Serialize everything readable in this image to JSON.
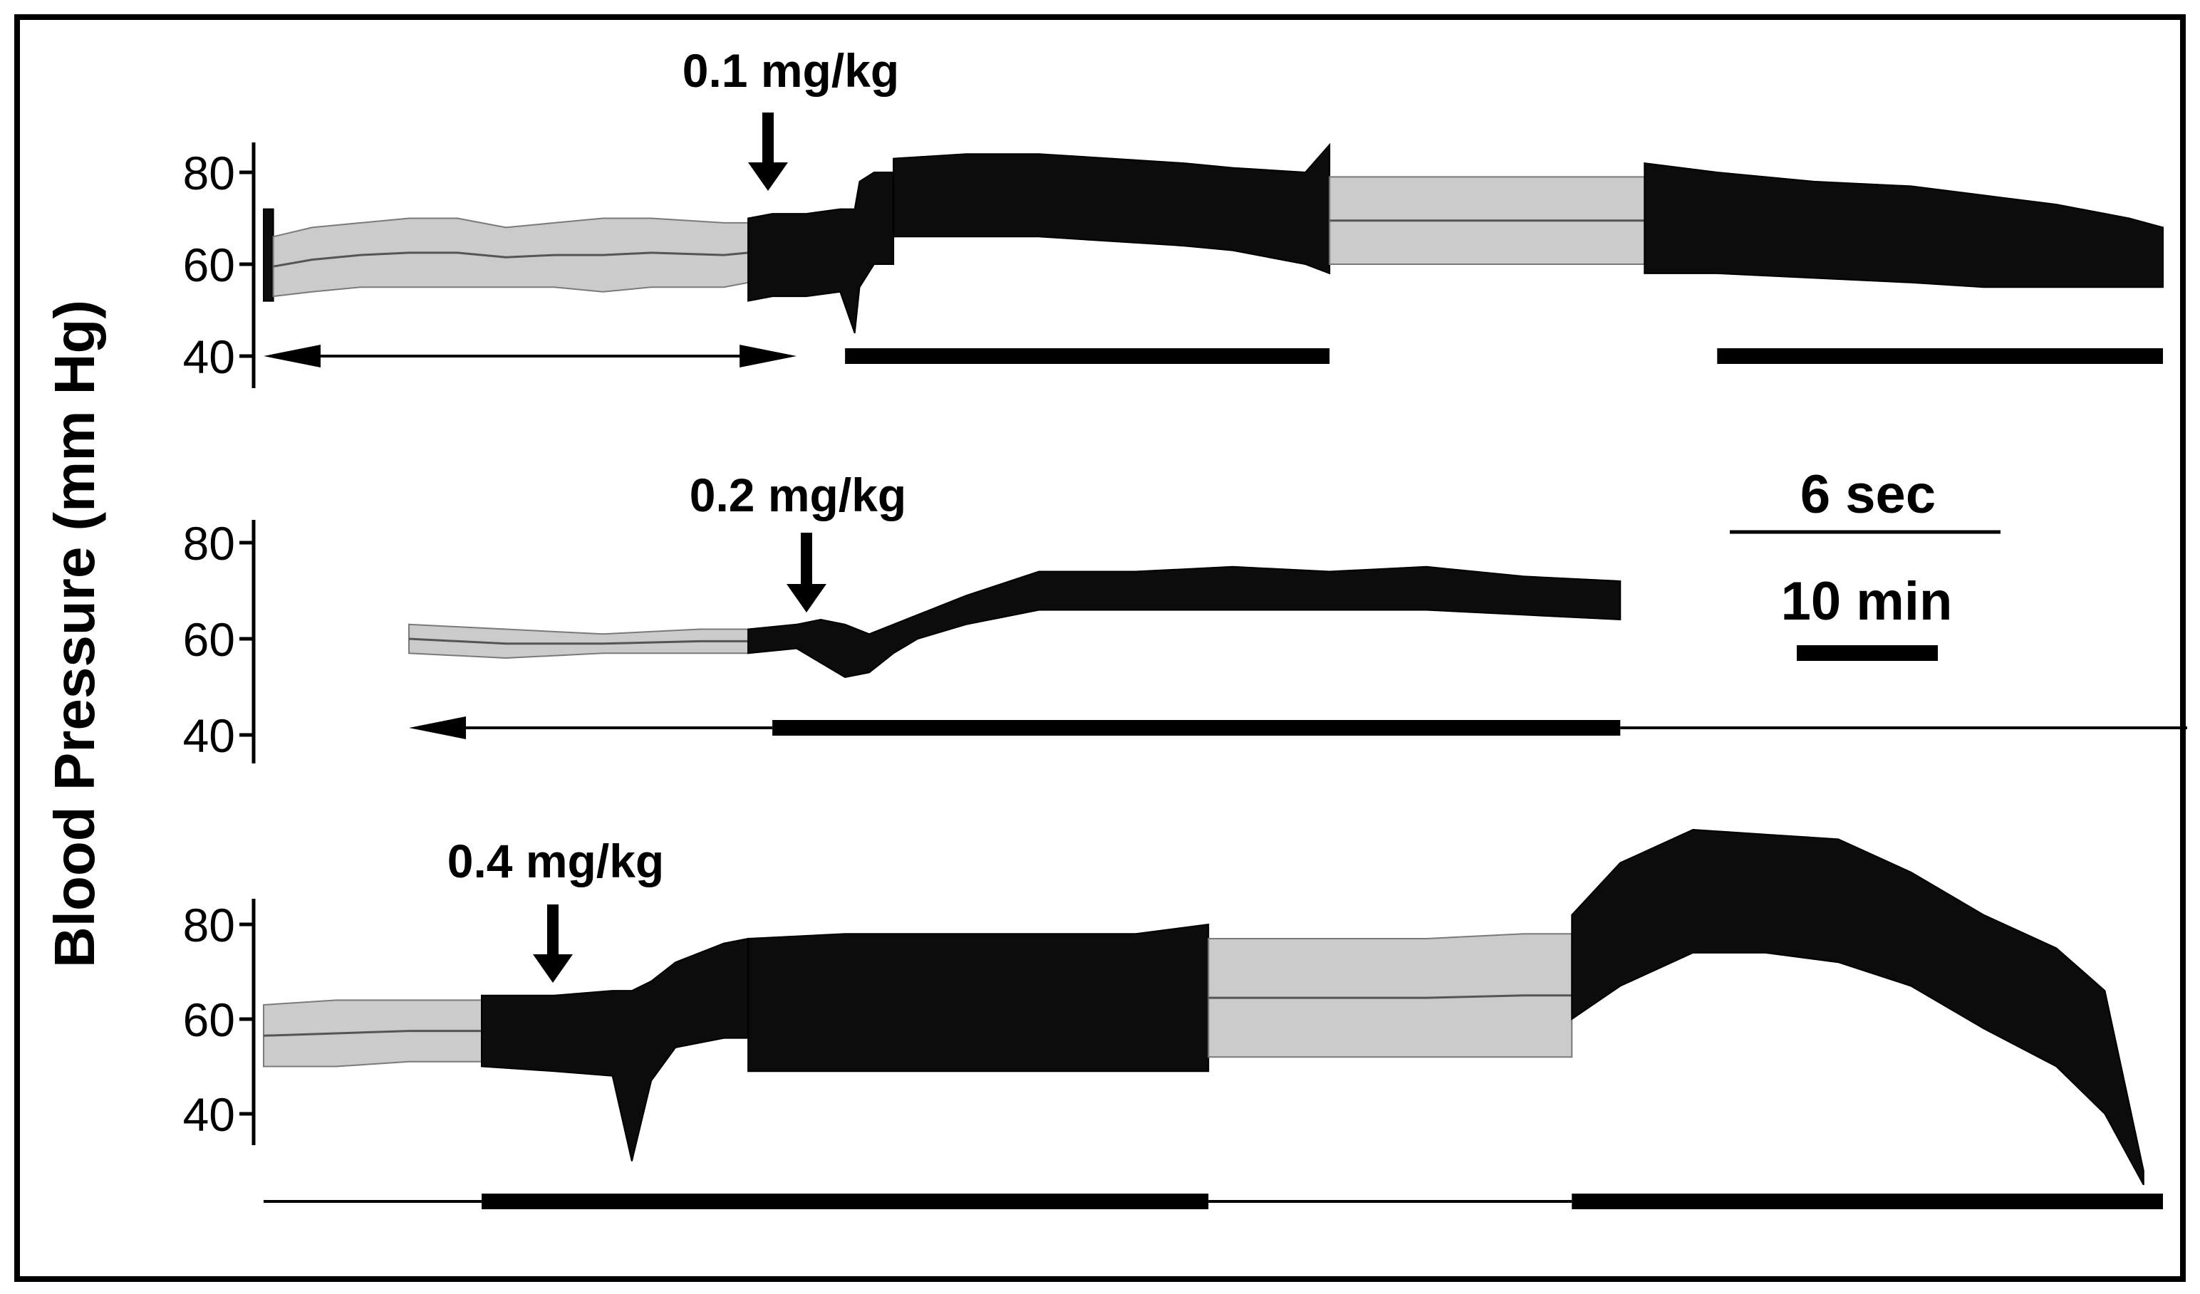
{
  "chart_data": {
    "type": "line",
    "ylabel": "Blood Pressure (mm Hg)",
    "scale_bars": {
      "fast_speed": "6 sec",
      "slow_speed": "10 min"
    },
    "panels": [
      {
        "id": "top",
        "dose_label": "0.1 mg/kg",
        "y_ticks": [
          80,
          60,
          40
        ],
        "ylim": [
          40,
          85
        ],
        "segments": [
          {
            "speed": "fast",
            "x": [
              0,
              0.01,
              0.02
            ],
            "min": [
              52,
              52,
              52
            ],
            "max": [
              72,
              72,
              72
            ]
          },
          {
            "speed": "slow",
            "x": [
              0.02,
              0.1,
              0.2,
              0.3,
              0.4,
              0.5,
              0.6,
              0.7,
              0.8,
              0.95,
              1.0
            ],
            "min": [
              53,
              54,
              55,
              55,
              55,
              55,
              55,
              54,
              55,
              55,
              56
            ],
            "max": [
              66,
              68,
              69,
              70,
              70,
              68,
              69,
              70,
              70,
              69,
              69
            ]
          },
          {
            "speed": "fast",
            "x": [
              1.0,
              1.05,
              1.12,
              1.19,
              1.22,
              1.23,
              1.26,
              1.3
            ],
            "min": [
              52,
              53,
              53,
              54,
              45,
              55,
              60,
              60
            ],
            "max": [
              70,
              71,
              71,
              72,
              72,
              78,
              80,
              80
            ]
          },
          {
            "speed": "fast",
            "x": [
              1.3,
              1.45,
              1.6,
              1.75,
              1.9,
              2.0,
              2.15,
              2.2
            ],
            "min": [
              66,
              66,
              66,
              65,
              64,
              63,
              60,
              58
            ],
            "max": [
              83,
              84,
              84,
              83,
              82,
              81,
              80,
              86
            ]
          },
          {
            "speed": "slow",
            "x": [
              2.2,
              2.35,
              2.5,
              2.65,
              2.85
            ],
            "min": [
              60,
              60,
              60,
              60,
              60
            ],
            "max": [
              79,
              79,
              79,
              79,
              79
            ]
          },
          {
            "speed": "fast",
            "x": [
              2.85,
              3.0,
              3.2,
              3.4,
              3.55,
              3.7,
              3.85,
              3.92
            ],
            "min": [
              58,
              58,
              57,
              56,
              55,
              55,
              55,
              55
            ],
            "max": [
              82,
              80,
              78,
              77,
              75,
              73,
              70,
              68
            ]
          }
        ],
        "rulers": [
          {
            "kind": "double-arrow",
            "x": [
              0,
              1.1
            ]
          },
          {
            "kind": "bar",
            "x": [
              1.2,
              2.2
            ]
          },
          {
            "kind": "bar",
            "x": [
              3.0,
              3.92
            ]
          }
        ]
      },
      {
        "id": "middle",
        "dose_label": "0.2 mg/kg",
        "y_ticks": [
          80,
          60,
          40
        ],
        "ylim": [
          40,
          85
        ],
        "segments": [
          {
            "speed": "slow",
            "x": [
              0.3,
              0.5,
              0.7,
              0.9,
              1.0
            ],
            "min": [
              57,
              56,
              57,
              57,
              57
            ],
            "max": [
              63,
              62,
              61,
              62,
              62
            ]
          },
          {
            "speed": "fast",
            "x": [
              1.0,
              1.1,
              1.15,
              1.2,
              1.25,
              1.3,
              1.35,
              1.45,
              1.6,
              1.8,
              2.0,
              2.2,
              2.4,
              2.6,
              2.8
            ],
            "min": [
              57,
              58,
              55,
              52,
              53,
              57,
              60,
              63,
              66,
              66,
              66,
              66,
              66,
              65,
              64
            ],
            "max": [
              62,
              63,
              64,
              63,
              61,
              63,
              65,
              69,
              74,
              74,
              75,
              74,
              75,
              73,
              72
            ]
          }
        ],
        "rulers": [
          {
            "kind": "arrow-left",
            "x": [
              0.3,
              1.05
            ]
          },
          {
            "kind": "bar",
            "x": [
              1.05,
              2.8
            ]
          }
        ]
      },
      {
        "id": "bottom",
        "dose_label": "0.4 mg/kg",
        "y_ticks": [
          80,
          60,
          40
        ],
        "ylim": [
          30,
          85
        ],
        "segments": [
          {
            "speed": "slow",
            "x": [
              0,
              0.15,
              0.3,
              0.45
            ],
            "min": [
              50,
              50,
              51,
              51
            ],
            "max": [
              63,
              64,
              64,
              64
            ]
          },
          {
            "speed": "fast",
            "x": [
              0.45,
              0.6,
              0.72,
              0.76,
              0.8,
              0.85,
              0.95,
              1.0
            ],
            "min": [
              50,
              49,
              48,
              30,
              47,
              54,
              56,
              56
            ],
            "max": [
              65,
              65,
              66,
              66,
              68,
              72,
              76,
              77
            ]
          },
          {
            "speed": "fast",
            "x": [
              1.0,
              1.2,
              1.4,
              1.6,
              1.8,
              1.95
            ],
            "min": [
              49,
              49,
              49,
              49,
              49,
              49
            ],
            "max": [
              77,
              78,
              78,
              78,
              78,
              80
            ]
          },
          {
            "speed": "slow",
            "x": [
              1.95,
              2.2,
              2.4,
              2.6,
              2.7
            ],
            "min": [
              52,
              52,
              52,
              52,
              52
            ],
            "max": [
              77,
              77,
              77,
              78,
              78
            ]
          },
          {
            "speed": "fast",
            "x": [
              2.7,
              2.8,
              2.95,
              3.1,
              3.25,
              3.4,
              3.55,
              3.7,
              3.8,
              3.88
            ],
            "min": [
              60,
              67,
              74,
              74,
              72,
              67,
              58,
              50,
              40,
              25
            ],
            "max": [
              82,
              93,
              100,
              99,
              98,
              91,
              82,
              75,
              66,
              28
            ]
          }
        ],
        "rulers": [
          {
            "kind": "line",
            "x": [
              0,
              0.45
            ]
          },
          {
            "kind": "bar",
            "x": [
              0.45,
              1.95
            ]
          },
          {
            "kind": "line",
            "x": [
              1.95,
              2.7
            ]
          },
          {
            "kind": "bar",
            "x": [
              2.7,
              3.92
            ]
          }
        ]
      }
    ]
  }
}
